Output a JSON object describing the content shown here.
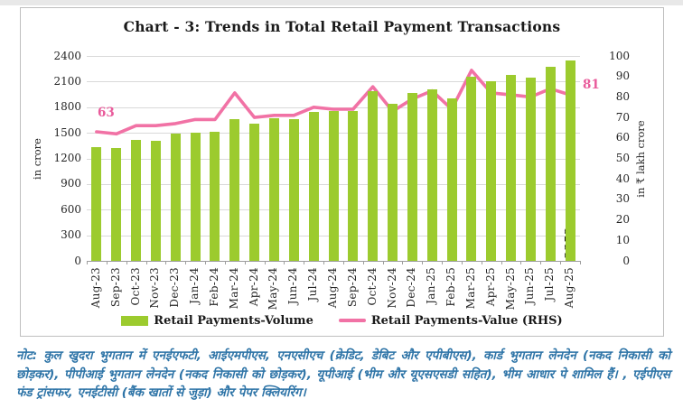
{
  "chart": {
    "title": "Chart - 3: Trends in Total Retail Payment Transactions",
    "left_axis": {
      "title": "in crore",
      "min": 0,
      "max": 2400,
      "step": 300,
      "ticks": [
        "0",
        "300",
        "600",
        "900",
        "1200",
        "1500",
        "1800",
        "2100",
        "2400"
      ]
    },
    "right_axis": {
      "title": "in ₹ lakh crore",
      "min": 0,
      "max": 100,
      "step": 10,
      "ticks": [
        "0",
        "10",
        "20",
        "30",
        "40",
        "50",
        "60",
        "70",
        "80",
        "90",
        "100"
      ]
    },
    "legend": [
      {
        "label": "Retail Payments-Volume",
        "color": "#9ccb2e",
        "type": "bar"
      },
      {
        "label": "Retail Payments-Value (RHS)",
        "color": "#f172a5",
        "type": "line"
      }
    ],
    "annotations": {
      "first_bar_label": "1333",
      "last_bar_label": "2352",
      "first_point_label": "63",
      "last_point_label": "81"
    }
  },
  "chart_data": {
    "type": "bar",
    "subtype": "bar+line combo, dual axis",
    "title": "Chart - 3: Trends in Total Retail Payment Transactions",
    "categories": [
      "Aug-23",
      "Sep-23",
      "Oct-23",
      "Nov-23",
      "Dec-23",
      "Jan-24",
      "Feb-24",
      "Mar-24",
      "Apr-24",
      "May-24",
      "Jun-24",
      "Jul-24",
      "Aug-24",
      "Sep-24",
      "Oct-24",
      "Nov-24",
      "Dec-24",
      "Jan-25",
      "Feb-25",
      "Mar-25",
      "Apr-25",
      "May-25",
      "Jun-25",
      "Jul-25",
      "Aug-25"
    ],
    "series": [
      {
        "name": "Retail Payments-Volume",
        "type": "bar",
        "axis": "left",
        "color": "#9ccb2e",
        "values": [
          1333,
          1318,
          1419,
          1409,
          1487,
          1503,
          1508,
          1662,
          1608,
          1668,
          1658,
          1740,
          1757,
          1750,
          1986,
          1835,
          1970,
          2004,
          1899,
          2153,
          2100,
          2174,
          2146,
          2270,
          2352
        ]
      },
      {
        "name": "Retail Payments-Value (RHS)",
        "type": "line",
        "axis": "right",
        "color": "#f172a5",
        "values": [
          63,
          62,
          66,
          66,
          67,
          69,
          69,
          82,
          70,
          71,
          71,
          75,
          74,
          74,
          85,
          73,
          79,
          83,
          74,
          93,
          82,
          81,
          80,
          84,
          81
        ]
      }
    ],
    "ylabel_left": "in crore",
    "ylabel_right": "in ₹ lakh crore",
    "ylim_left": [
      0,
      2400
    ],
    "ylim_right": [
      0,
      100
    ],
    "grid": true,
    "legend_position": "bottom",
    "data_labels": {
      "Aug-23 volume": "1333",
      "Aug-25 volume": "2352",
      "Aug-23 value": "63",
      "Aug-25 value": "81"
    }
  },
  "note": "नोट: कुल खुदरा भुगतान में एनईएफटी, आईएमपीएस, एनएसीएच (क्रेडिट, डेबिट और एपीबीएस), कार्ड भुगतान लेनदेन (नकद निकासी को छोड़कर), पीपीआई भुगतान लेनदेन (नकद निकासी को छोड़कर), यूपीआई (भीम और यूएसएसडी सहित), भीम आधार पे शामिल हैं। , एईपीएस फंड ट्रांसफर, एनईटीसी (बैंक खातों से जुड़ा) और पेपर क्लियरिंग।",
  "colors": {
    "bar_green": "#9ccb2e",
    "line_pink": "#f172a5",
    "note_blue": "#2e74a7",
    "gridline": "#d9d9d9",
    "axis_line": "#9e9e9e",
    "border": "#bfbfbf"
  }
}
